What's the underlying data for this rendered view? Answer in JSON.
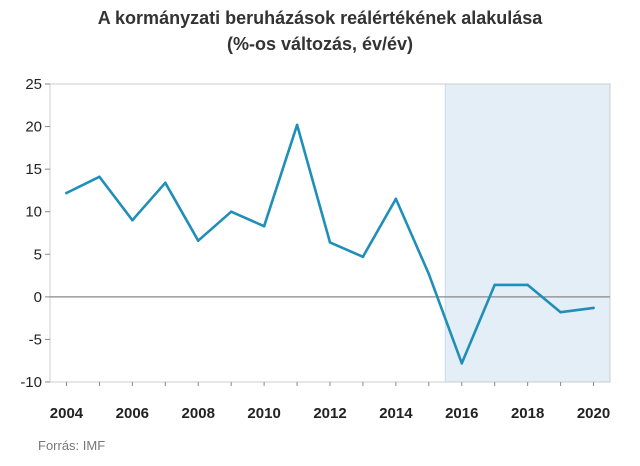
{
  "title_line1": "A kormányzati beruházások reálértékének alakulása",
  "title_line2": "(%-os változás, év/év)",
  "source": "Forrás: IMF",
  "colors": {
    "line": "#1f8fb8",
    "shade": "#e4eef7",
    "axis": "#888888",
    "grid": "#cccccc"
  },
  "chart_data": {
    "type": "line",
    "title": "A kormányzati beruházások reálértékének alakulása",
    "subtitle": "(%-os változás, év/év)",
    "xlabel": "",
    "ylabel": "",
    "x": [
      2004,
      2005,
      2006,
      2007,
      2008,
      2009,
      2010,
      2011,
      2012,
      2013,
      2014,
      2015,
      2016,
      2017,
      2018,
      2019,
      2020
    ],
    "series": [
      {
        "values": [
          12.2,
          14.1,
          9.0,
          13.4,
          6.6,
          10.0,
          8.3,
          20.2,
          6.4,
          4.7,
          11.5,
          2.7,
          -7.8,
          1.4,
          1.4,
          -1.8,
          -1.3
        ]
      }
    ],
    "ylim": [
      -10,
      25
    ],
    "yticks": [
      -10,
      -5,
      0,
      5,
      10,
      15,
      20,
      25
    ],
    "xticks": [
      2004,
      2006,
      2008,
      2010,
      2012,
      2014,
      2016,
      2018,
      2020
    ],
    "shaded_region": [
      2015.5,
      2020.5
    ],
    "grid": false,
    "legend": "none"
  }
}
